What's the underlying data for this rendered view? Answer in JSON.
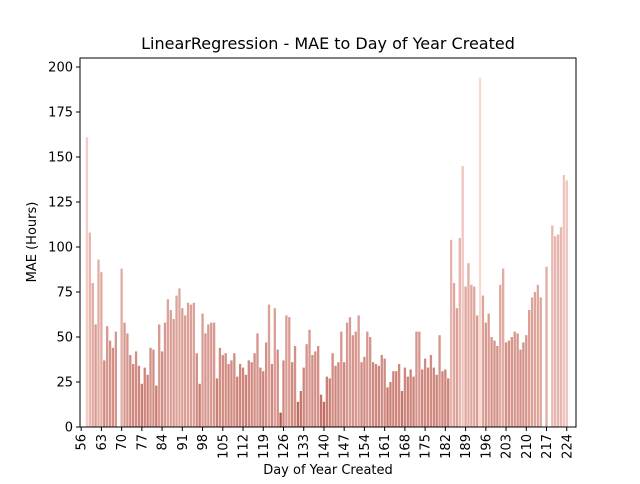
{
  "chart_data": {
    "type": "bar",
    "title": "LinearRegression - MAE to Day of Year Created",
    "x_label": "Day of Year Created",
    "y_label": "MAE (Hours)",
    "x": [
      58,
      59,
      60,
      61,
      62,
      63,
      64,
      65,
      66,
      67,
      68,
      69,
      70,
      71,
      72,
      73,
      74,
      75,
      76,
      77,
      78,
      79,
      80,
      81,
      82,
      83,
      84,
      85,
      86,
      87,
      88,
      89,
      90,
      91,
      92,
      93,
      94,
      95,
      96,
      97,
      98,
      99,
      100,
      101,
      102,
      103,
      104,
      105,
      106,
      107,
      108,
      109,
      110,
      111,
      112,
      113,
      114,
      115,
      116,
      117,
      118,
      119,
      120,
      121,
      122,
      123,
      124,
      125,
      126,
      127,
      128,
      129,
      130,
      131,
      132,
      133,
      134,
      135,
      136,
      137,
      138,
      139,
      140,
      141,
      142,
      143,
      144,
      145,
      146,
      147,
      148,
      149,
      150,
      151,
      152,
      153,
      154,
      155,
      156,
      157,
      158,
      159,
      160,
      161,
      162,
      163,
      164,
      165,
      166,
      167,
      168,
      169,
      170,
      171,
      172,
      173,
      174,
      175,
      176,
      177,
      178,
      179,
      180,
      181,
      182,
      183,
      184,
      185,
      186,
      187,
      188,
      189,
      190,
      191,
      192,
      193,
      194,
      195,
      196,
      197,
      198,
      199,
      200,
      201,
      202,
      203,
      204,
      205,
      206,
      207,
      208,
      209,
      210,
      211,
      212,
      213,
      214,
      215,
      216,
      217,
      218,
      219,
      220,
      221,
      222,
      223,
      224
    ],
    "values": [
      161,
      108,
      80,
      57,
      93,
      86,
      37,
      56,
      48,
      44,
      53,
      null,
      88,
      58,
      52,
      40,
      35,
      42,
      34,
      24,
      33,
      29,
      44,
      43,
      23,
      57,
      42,
      58,
      71,
      65,
      60,
      73,
      77,
      66,
      62,
      69,
      68,
      69,
      41,
      24,
      63,
      52,
      57,
      58,
      58,
      27,
      44,
      40,
      41,
      35,
      37,
      41,
      28,
      35,
      33,
      29,
      37,
      36,
      41,
      52,
      33,
      31,
      47,
      68,
      35,
      66,
      43,
      8,
      37,
      62,
      61,
      36,
      45,
      14,
      20,
      33,
      46,
      54,
      40,
      42,
      45,
      18,
      14,
      28,
      27,
      41,
      34,
      36,
      53,
      36,
      58,
      61,
      51,
      53,
      62,
      36,
      39,
      53,
      50,
      36,
      35,
      34,
      40,
      38,
      22,
      25,
      31,
      31,
      35,
      20,
      33,
      28,
      32,
      28,
      53,
      53,
      32,
      38,
      33,
      40,
      33,
      29,
      51,
      31,
      32,
      27,
      104,
      80,
      66,
      105,
      145,
      78,
      91,
      79,
      78,
      62,
      194,
      73,
      58,
      63,
      50,
      48,
      45,
      79,
      88,
      47,
      48,
      50,
      53,
      52,
      43,
      47,
      51,
      65,
      72,
      75,
      79,
      72,
      null,
      89,
      null,
      112,
      106,
      107,
      111,
      140,
      137
    ],
    "color_range": [
      "#b5554a",
      "#f9d9d2"
    ],
    "xlim": [
      55.6,
      227.2
    ],
    "ylim": [
      0,
      205
    ],
    "xticks": [
      56,
      63,
      70,
      77,
      84,
      91,
      98,
      105,
      112,
      119,
      126,
      133,
      140,
      147,
      154,
      161,
      168,
      175,
      182,
      189,
      196,
      203,
      210,
      217,
      224
    ],
    "yticks": [
      0,
      25,
      50,
      75,
      100,
      125,
      150,
      175,
      200
    ]
  }
}
